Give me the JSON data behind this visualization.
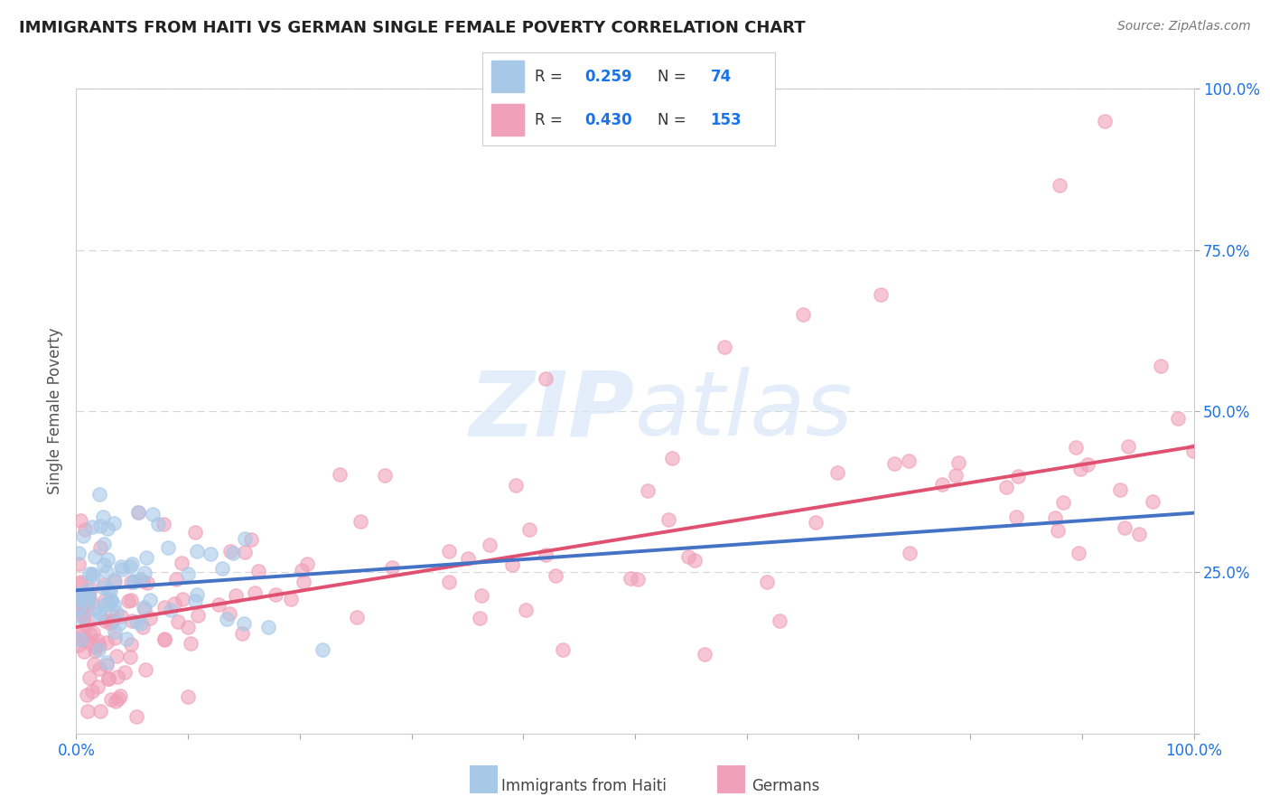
{
  "title": "IMMIGRANTS FROM HAITI VS GERMAN SINGLE FEMALE POVERTY CORRELATION CHART",
  "source_text": "Source: ZipAtlas.com",
  "ylabel": "Single Female Poverty",
  "watermark": "ZIPatlas",
  "color_haiti": "#a8c8e8",
  "color_german": "#f0a0b8",
  "color_line_haiti": "#4472c4",
  "color_line_german": "#e05070",
  "title_color": "#222222",
  "axis_label_color": "#555555",
  "tick_color": "#1a73e8",
  "grid_color": "#cccccc",
  "xlim": [
    0.0,
    1.0
  ],
  "ylim": [
    0.0,
    1.0
  ],
  "haiti_intercept": 0.222,
  "haiti_slope": 0.12,
  "german_intercept": 0.165,
  "german_slope": 0.28
}
